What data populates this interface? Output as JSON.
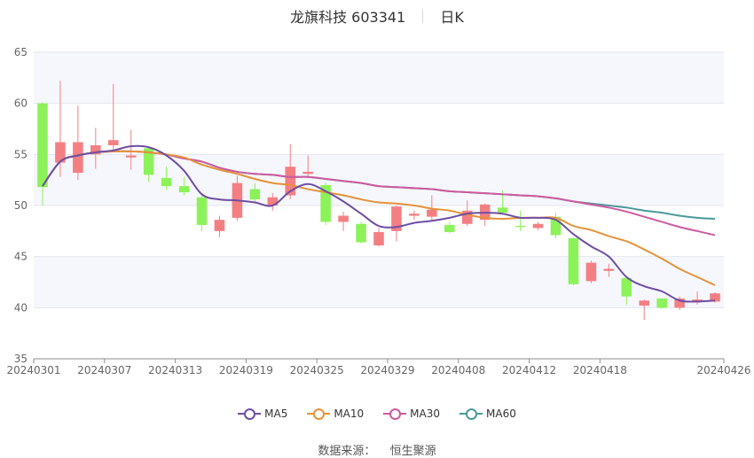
{
  "header": {
    "title": "龙旗科技 603341",
    "period": "日K"
  },
  "source": {
    "label": "数据来源：",
    "value": "恒生聚源"
  },
  "chart_data": {
    "type": "candlestick",
    "ylim": [
      35,
      65
    ],
    "yticks": [
      35,
      40,
      45,
      50,
      55,
      60,
      65
    ],
    "x_tick_labels": [
      "20240301",
      "20240307",
      "20240313",
      "20240319",
      "20240325",
      "20240329",
      "20240408",
      "20240412",
      "20240418",
      "20240426"
    ],
    "up_color": "#f47f83",
    "down_color": "#8cf25a",
    "dates": [
      "20240301",
      "20240304",
      "20240305",
      "20240306",
      "20240307",
      "20240308",
      "20240311",
      "20240312",
      "20240313",
      "20240314",
      "20240315",
      "20240318",
      "20240319",
      "20240320",
      "20240321",
      "20240322",
      "20240325",
      "20240326",
      "20240327",
      "20240328",
      "20240329",
      "20240401",
      "20240402",
      "20240403",
      "20240408",
      "20240409",
      "20240410",
      "20240411",
      "20240412",
      "20240415",
      "20240416",
      "20240417",
      "20240418",
      "20240419",
      "20240422",
      "20240423",
      "20240424",
      "20240425",
      "20240426"
    ],
    "candles": [
      {
        "o": 60.0,
        "c": 51.8,
        "h": 60.1,
        "l": 50.0
      },
      {
        "o": 54.2,
        "c": 56.2,
        "h": 62.2,
        "l": 52.8
      },
      {
        "o": 53.2,
        "c": 56.2,
        "h": 59.8,
        "l": 52.5
      },
      {
        "o": 55.0,
        "c": 55.9,
        "h": 57.6,
        "l": 53.6
      },
      {
        "o": 55.9,
        "c": 56.4,
        "h": 61.9,
        "l": 55.5
      },
      {
        "o": 54.7,
        "c": 54.9,
        "h": 57.4,
        "l": 53.5
      },
      {
        "o": 55.6,
        "c": 53.0,
        "h": 55.8,
        "l": 52.3
      },
      {
        "o": 52.7,
        "c": 51.9,
        "h": 53.8,
        "l": 51.5
      },
      {
        "o": 51.9,
        "c": 51.3,
        "h": 52.8,
        "l": 51.0
      },
      {
        "o": 50.8,
        "c": 48.1,
        "h": 51.0,
        "l": 47.5
      },
      {
        "o": 47.5,
        "c": 48.6,
        "h": 49.0,
        "l": 46.9
      },
      {
        "o": 48.8,
        "c": 52.2,
        "h": 52.9,
        "l": 48.5
      },
      {
        "o": 51.6,
        "c": 50.6,
        "h": 52.2,
        "l": 50.2
      },
      {
        "o": 50.0,
        "c": 50.8,
        "h": 51.2,
        "l": 49.5
      },
      {
        "o": 51.0,
        "c": 53.8,
        "h": 56.0,
        "l": 50.6
      },
      {
        "o": 53.1,
        "c": 53.3,
        "h": 54.9,
        "l": 52.7
      },
      {
        "o": 52.0,
        "c": 48.4,
        "h": 52.3,
        "l": 48.1
      },
      {
        "o": 48.4,
        "c": 49.0,
        "h": 49.4,
        "l": 47.5
      },
      {
        "o": 48.2,
        "c": 46.4,
        "h": 48.4,
        "l": 46.3
      },
      {
        "o": 46.1,
        "c": 47.4,
        "h": 47.8,
        "l": 46.0
      },
      {
        "o": 47.5,
        "c": 49.9,
        "h": 50.0,
        "l": 46.5
      },
      {
        "o": 49.0,
        "c": 49.2,
        "h": 49.5,
        "l": 48.6
      },
      {
        "o": 48.9,
        "c": 49.6,
        "h": 51.0,
        "l": 48.5
      },
      {
        "o": 48.1,
        "c": 47.4,
        "h": 48.4,
        "l": 47.3
      },
      {
        "o": 48.2,
        "c": 49.5,
        "h": 50.5,
        "l": 48.0
      },
      {
        "o": 48.6,
        "c": 50.1,
        "h": 50.2,
        "l": 48.0
      },
      {
        "o": 49.8,
        "c": 49.3,
        "h": 51.5,
        "l": 49.1
      },
      {
        "o": 48.0,
        "c": 47.9,
        "h": 49.5,
        "l": 47.5
      },
      {
        "o": 47.8,
        "c": 48.2,
        "h": 48.4,
        "l": 47.6
      },
      {
        "o": 48.9,
        "c": 47.1,
        "h": 49.3,
        "l": 46.8
      },
      {
        "o": 46.8,
        "c": 42.3,
        "h": 46.9,
        "l": 42.2
      },
      {
        "o": 42.6,
        "c": 44.4,
        "h": 44.6,
        "l": 42.4
      },
      {
        "o": 43.6,
        "c": 43.8,
        "h": 44.3,
        "l": 43.0
      },
      {
        "o": 42.9,
        "c": 41.1,
        "h": 43.0,
        "l": 40.3
      },
      {
        "o": 40.2,
        "c": 40.7,
        "h": 40.8,
        "l": 38.8
      },
      {
        "o": 40.9,
        "c": 40.0,
        "h": 40.9,
        "l": 39.9
      },
      {
        "o": 40.0,
        "c": 40.9,
        "h": 41.1,
        "l": 39.8
      },
      {
        "o": 40.6,
        "c": 40.8,
        "h": 41.6,
        "l": 40.3
      },
      {
        "o": 40.6,
        "c": 41.4,
        "h": 41.5,
        "l": 40.5
      }
    ],
    "series": [
      {
        "name": "MA5",
        "color": "#6e4ea3",
        "values": [
          51.9,
          54.3,
          54.9,
          55.2,
          55.4,
          55.8,
          55.7,
          54.9,
          53.4,
          51.1,
          50.6,
          50.5,
          50.3,
          50.0,
          51.4,
          52.1,
          51.4,
          50.4,
          49.2,
          48.0,
          47.9,
          48.3,
          48.5,
          48.8,
          49.2,
          49.3,
          49.2,
          48.8,
          48.8,
          48.6,
          47.2,
          46.0,
          45.0,
          43.0,
          42.1,
          41.6,
          40.7,
          40.6,
          40.7
        ]
      },
      {
        "name": "MA10",
        "color": "#e6923a",
        "values": [
          51.9,
          54.3,
          54.9,
          55.2,
          55.3,
          55.3,
          55.2,
          55.0,
          54.7,
          54.0,
          53.5,
          53.1,
          52.6,
          52.2,
          52.0,
          51.6,
          51.3,
          51.0,
          50.6,
          50.3,
          50.2,
          50.0,
          49.7,
          49.5,
          49.1,
          48.8,
          48.7,
          48.8,
          48.8,
          48.8,
          48.0,
          47.6,
          47.0,
          46.5,
          45.7,
          44.8,
          43.8,
          43.0,
          42.2
        ]
      },
      {
        "name": "MA30",
        "color": "#cf5a9f",
        "values": [
          51.9,
          54.3,
          54.9,
          55.2,
          55.3,
          55.3,
          55.2,
          55.0,
          54.6,
          54.3,
          53.7,
          53.3,
          53.1,
          53.0,
          52.8,
          52.8,
          52.6,
          52.4,
          52.2,
          51.9,
          51.8,
          51.7,
          51.6,
          51.4,
          51.3,
          51.2,
          51.1,
          51.0,
          50.9,
          50.7,
          50.4,
          50.1,
          49.8,
          49.4,
          48.9,
          48.4,
          47.9,
          47.5,
          47.1
        ]
      },
      {
        "name": "MA60",
        "color": "#4b9a9a",
        "values": [
          51.9,
          54.3,
          54.9,
          55.2,
          55.3,
          55.3,
          55.2,
          55.0,
          54.6,
          54.3,
          53.7,
          53.3,
          53.1,
          53.0,
          52.8,
          52.8,
          52.6,
          52.4,
          52.2,
          51.9,
          51.8,
          51.7,
          51.6,
          51.4,
          51.3,
          51.2,
          51.1,
          51.0,
          50.9,
          50.7,
          50.4,
          50.2,
          50.0,
          49.8,
          49.5,
          49.3,
          49.0,
          48.8,
          48.7
        ]
      }
    ]
  }
}
